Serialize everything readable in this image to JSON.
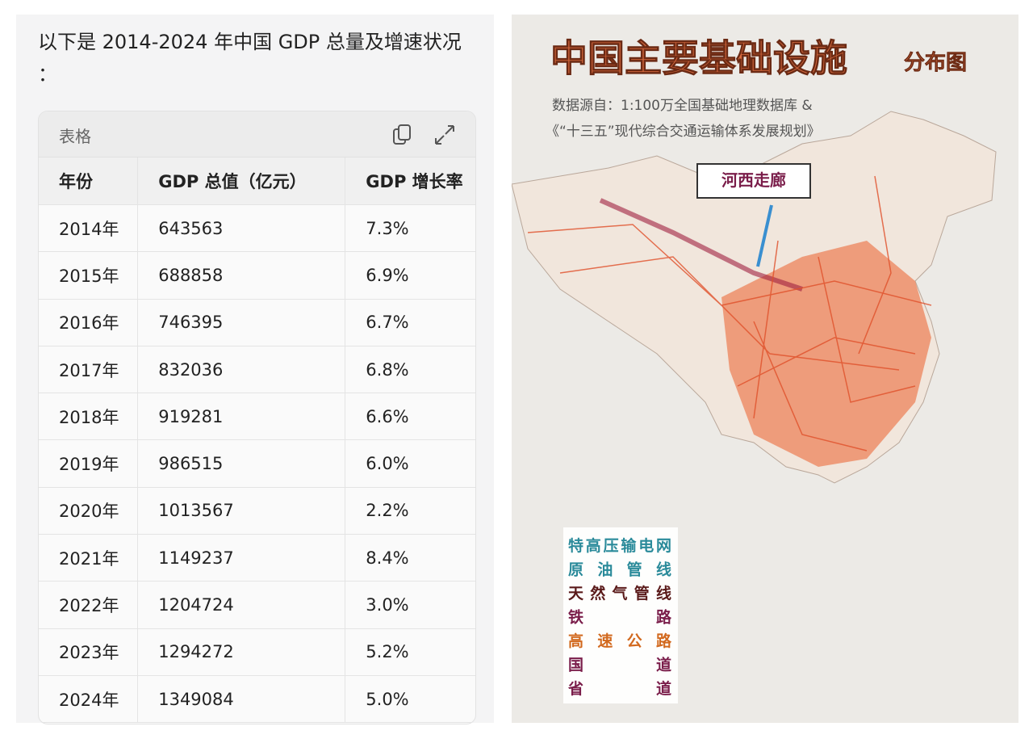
{
  "intro": "以下是 2014-2024 年中国 GDP 总量及增速状况 ：",
  "table": {
    "label": "表格",
    "headers": [
      "年份",
      "GDP 总值（亿元）",
      "GDP 增长率"
    ],
    "rows": [
      [
        "2014年",
        "643563",
        "7.3%"
      ],
      [
        "2015年",
        "688858",
        "6.9%"
      ],
      [
        "2016年",
        "746395",
        "6.7%"
      ],
      [
        "2017年",
        "832036",
        "6.8%"
      ],
      [
        "2018年",
        "919281",
        "6.6%"
      ],
      [
        "2019年",
        "986515",
        "6.0%"
      ],
      [
        "2020年",
        "1013567",
        "2.2%"
      ],
      [
        "2021年",
        "1149237",
        "8.4%"
      ],
      [
        "2022年",
        "1204724",
        "3.0%"
      ],
      [
        "2023年",
        "1294272",
        "5.2%"
      ],
      [
        "2024年",
        "1349084",
        "5.0%"
      ]
    ]
  },
  "map": {
    "title": "中国主要基础设施",
    "title_suffix": "分布图",
    "source": [
      "数据源自：1:100万全国基础地理数据库 &",
      "《“十三五”现代综合交通运输体系发展规划》"
    ],
    "callout": "河西走廊",
    "legend": [
      {
        "name": "特高压输电网",
        "color": "#2a8a9a"
      },
      {
        "name": "原油管线",
        "color": "#2a8a9a"
      },
      {
        "name": "天然气管线",
        "color": "#5a1a1a"
      },
      {
        "name": "铁路",
        "color": "#7a1d4a"
      },
      {
        "name": "高速公路",
        "color": "#d2691e"
      },
      {
        "name": "国道",
        "color": "#7a1d4a"
      },
      {
        "name": "省道",
        "color": "#7a1d4a"
      }
    ]
  }
}
